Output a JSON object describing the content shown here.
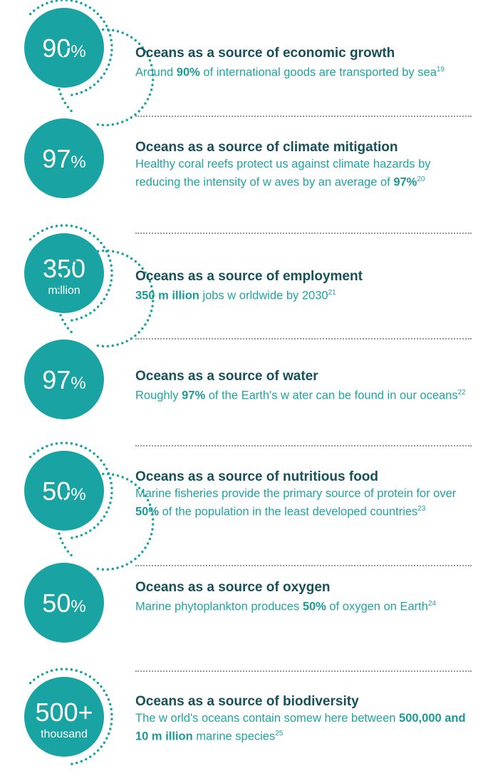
{
  "items": [
    {
      "value": "90",
      "unit": "%",
      "title": "Oceans as a source of economic growth",
      "text": [
        {
          "text": "Around ",
          "bold": false
        },
        {
          "text": "90%",
          "bold": true
        },
        {
          "text": " of international goods are transported by sea",
          "bold": false
        }
      ],
      "sup": "19"
    },
    {
      "value": "97",
      "unit": "%",
      "title": "Oceans as a source of climate mitigation",
      "text": [
        {
          "text": "Healthy coral reefs protect us against climate hazards by reducing the intensity of w aves by an average of ",
          "bold": false
        },
        {
          "text": "97%",
          "bold": true
        }
      ],
      "sup": "20"
    },
    {
      "value": "350",
      "unit": "million",
      "title": "Oceans as a source of employment",
      "text": [
        {
          "text": "350 m illion",
          "bold": true
        },
        {
          "text": " jobs w orldwide by 2030",
          "bold": false
        }
      ],
      "sup": "21"
    },
    {
      "value": "97",
      "unit": "%",
      "title": "Oceans as a source of water",
      "text": [
        {
          "text": "Roughly ",
          "bold": false
        },
        {
          "text": "97%",
          "bold": true
        },
        {
          "text": " of the Earth's w ater can be found in our oceans",
          "bold": false
        }
      ],
      "sup": "22"
    },
    {
      "value": "50",
      "unit": "%",
      "title": "Oceans as a source of nutritious food",
      "text": [
        {
          "text": "Marine fisheries provide the primary source of protein for over ",
          "bold": false
        },
        {
          "text": "50%",
          "bold": true
        },
        {
          "text": " of the population in the least developed countries",
          "bold": false
        }
      ],
      "sup": "23"
    },
    {
      "value": "50",
      "unit": "%",
      "title": "Oceans as a source of oxygen",
      "text": [
        {
          "text": "Marine phytoplankton produces ",
          "bold": false
        },
        {
          "text": "50%",
          "bold": true
        },
        {
          "text": " of oxygen on Earth",
          "bold": false
        }
      ],
      "sup": "24"
    },
    {
      "value": "500+",
      "unit": "thousand",
      "title": "Oceans as a source of biodiversity",
      "text": [
        {
          "text": "The w orld's oceans contain somew here between ",
          "bold": false
        },
        {
          "text": "500,000 and 10 m illion",
          "bold": true
        },
        {
          "text": " marine species",
          "bold": false
        }
      ],
      "sup": "25"
    }
  ]
}
